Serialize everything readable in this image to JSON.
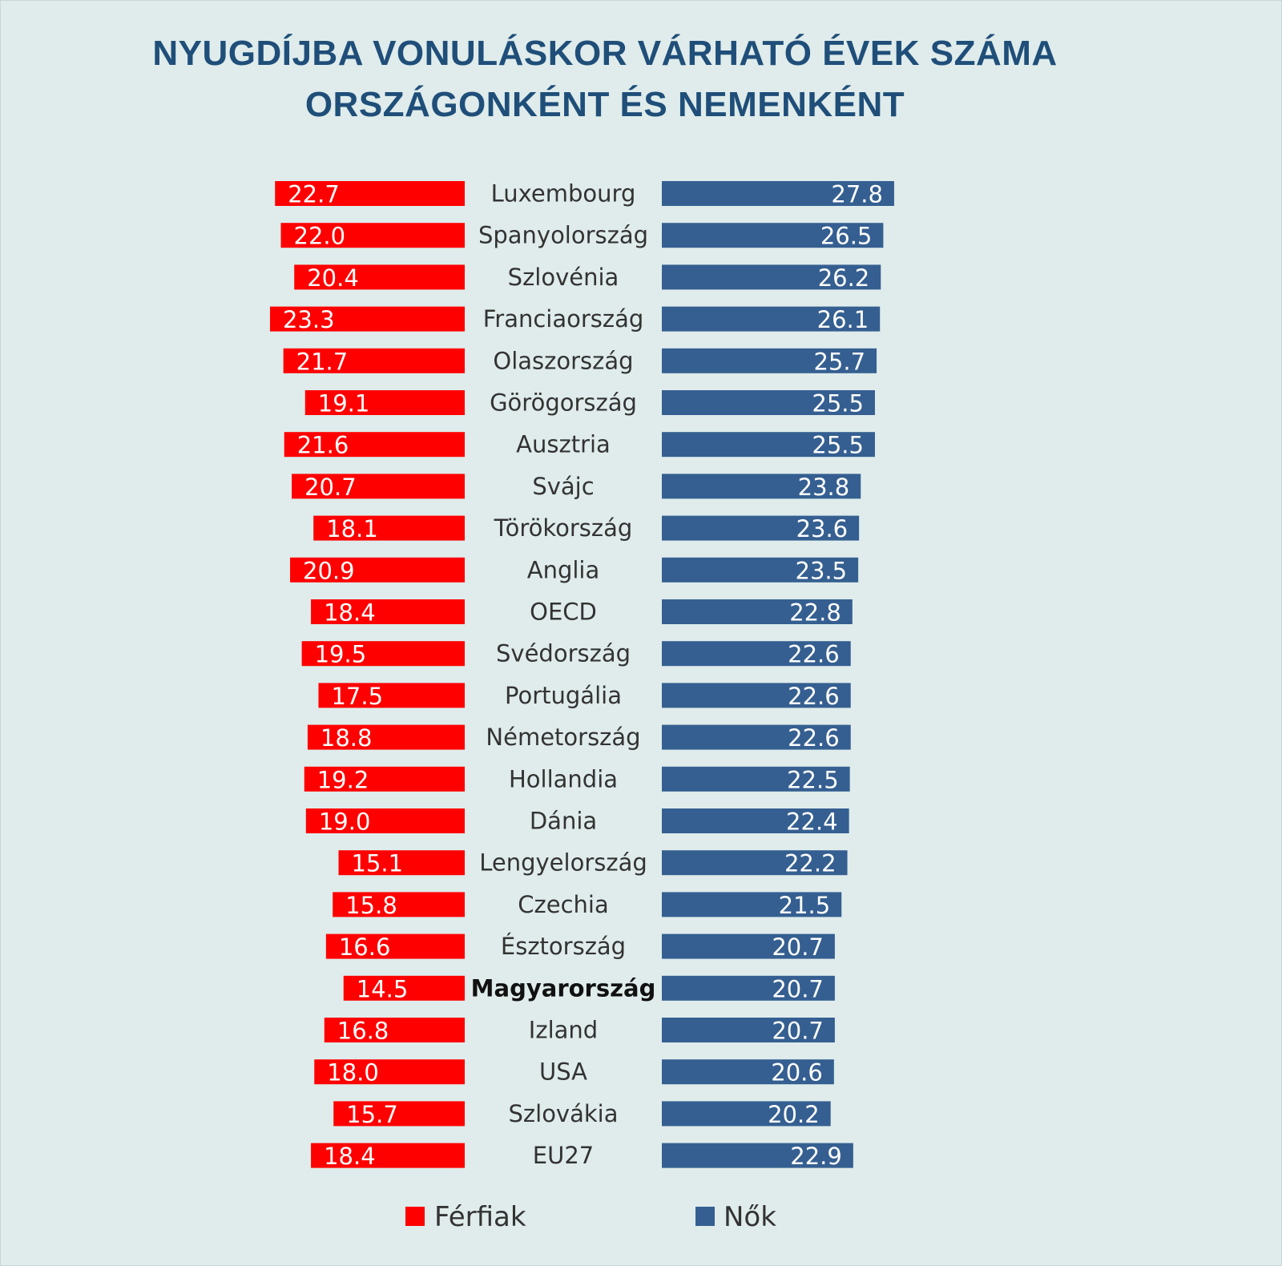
{
  "title": {
    "line1": "NYUGDÍJBA VONULÁSKOR VÁRHATÓ ÉVEK SZÁMA",
    "line2": "ORSZÁGONKÉNT ÉS NEMENKÉNT"
  },
  "colors": {
    "men": "#ff0000",
    "women": "#355f91",
    "background": "#dfeceb"
  },
  "chart_data": {
    "type": "bar",
    "orientation": "horizontal-butterfly",
    "title": "NYUGDÍJBA VONULÁSKOR VÁRHATÓ ÉVEK SZÁMA ORSZÁGONKÉNT ÉS NEMENKÉNT",
    "categories": [
      "Luxembourg",
      "Spanyolország",
      "Szlovénia",
      "Franciaország",
      "Olaszország",
      "Görögország",
      "Ausztria",
      "Svájc",
      "Törökország",
      "Anglia",
      "OECD",
      "Svédország",
      "Portugália",
      "Németország",
      "Hollandia",
      "Dánia",
      "Lengyelország",
      "Czechia",
      "Észtország",
      "Magyarország",
      "Izland",
      "USA",
      "Szlovákia",
      "EU27"
    ],
    "highlight_category": "Magyarország",
    "series": [
      {
        "name": "Férfiak",
        "color": "#ff0000",
        "values": [
          22.7,
          22.0,
          20.4,
          23.3,
          21.7,
          19.1,
          21.6,
          20.7,
          18.1,
          20.9,
          18.4,
          19.5,
          17.5,
          18.8,
          19.2,
          19.0,
          15.1,
          15.8,
          16.6,
          14.5,
          16.8,
          18.0,
          15.7,
          18.4
        ],
        "labels": [
          "22.7",
          "22.0",
          "20.4",
          "23.3",
          "21.7",
          "19.1",
          "21.6",
          "20.7",
          "18.1",
          "20.9",
          "18.4",
          "19.5",
          "17.5",
          "18.8",
          "19.2",
          "19.0",
          "15.1",
          "15.8",
          "16.6",
          "14.5",
          "16.8",
          "18.0",
          "15.7",
          "18.4"
        ]
      },
      {
        "name": "Nők",
        "color": "#355f91",
        "values": [
          27.8,
          26.5,
          26.2,
          26.1,
          25.7,
          25.5,
          25.5,
          23.8,
          23.6,
          23.5,
          22.8,
          22.6,
          22.6,
          22.6,
          22.5,
          22.4,
          22.2,
          21.5,
          20.7,
          20.7,
          20.7,
          20.6,
          20.2,
          22.9
        ],
        "labels": [
          "27.8",
          "26.5",
          "26.2",
          "26.1",
          "25.7",
          "25.5",
          "25.5",
          "23.8",
          "23.6",
          "23.5",
          "22.8",
          "22.6",
          "22.6",
          "22.6",
          "22.5",
          "22.4",
          "22.2",
          "21.5",
          "20.7",
          "20.7",
          "20.7",
          "20.6",
          "20.2",
          "22.9"
        ]
      }
    ],
    "legend": {
      "position": "bottom",
      "entries": [
        "Férfiak",
        "Nők"
      ]
    },
    "grid": false
  }
}
